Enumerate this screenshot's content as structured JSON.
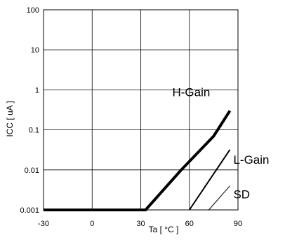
{
  "chart_data": {
    "type": "line",
    "title": "",
    "xlabel": "Ta [ °C ]",
    "ylabel": "ICC [ uA ]",
    "x_scale": "linear",
    "y_scale": "log",
    "xlim": [
      -30,
      90
    ],
    "ylim": [
      0.001,
      100
    ],
    "x_ticks": [
      -30,
      0,
      30,
      60,
      90
    ],
    "x_tick_labels": [
      "-30",
      "0",
      "30",
      "60",
      "90"
    ],
    "y_ticks": [
      0.001,
      0.01,
      0.1,
      1,
      10,
      100
    ],
    "y_tick_labels": [
      "0.001",
      "0.01",
      "0.1",
      "1",
      "10",
      "100"
    ],
    "grid": true,
    "series": [
      {
        "name": "H-Gain",
        "line_weight": "thick",
        "x": [
          -30,
          33,
          55,
          75,
          85
        ],
        "y": [
          0.001,
          0.001,
          0.01,
          0.07,
          0.3
        ]
      },
      {
        "name": "L-Gain",
        "line_weight": "medium",
        "x": [
          60,
          85
        ],
        "y": [
          0.001,
          0.032
        ]
      },
      {
        "name": "SD",
        "line_weight": "thin",
        "x": [
          72,
          85
        ],
        "y": [
          0.001,
          0.004
        ]
      }
    ]
  }
}
